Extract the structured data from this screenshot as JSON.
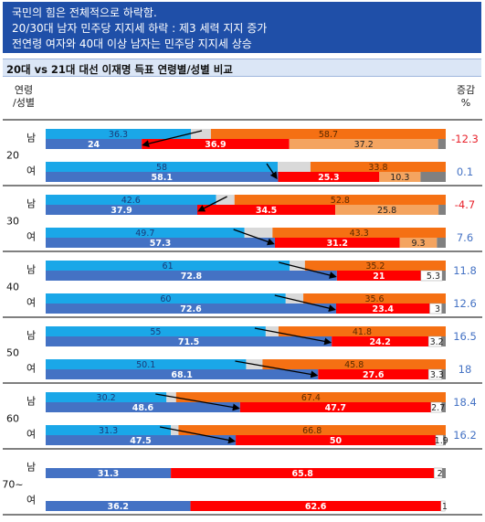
{
  "banner": {
    "line1": "국민의 힘은 전체적으로 하락함.",
    "line2": "20/30대 남자 민주당 지지세 하락 : 제3 세력 지지 증가",
    "line3": "전연령 여자와 40대 이상 남자는 민주당 지지세 상승"
  },
  "subtitle": "20대 vs 21대 대선 이재명 득표 연령별/성별 비교",
  "headers": {
    "age_line1": "연령",
    "age_line2": "/성별",
    "change_line1": "증감",
    "change_line2": "%"
  },
  "colors": {
    "prev_dem": "#1aa7e8",
    "prev_other": "#d9d9d9",
    "prev_ppp": "#f57013",
    "cur_dem": "#4472c4",
    "cur_ppp": "#ff0000",
    "cur_other": "#f4a460",
    "cur_gray": "#808080",
    "neg_text": "#e8212b",
    "pos_text": "#4472c4"
  },
  "chart_data": {
    "type": "bar",
    "orientation": "horizontal",
    "stacked": true,
    "groups": [
      {
        "age": "20",
        "rows": [
          {
            "gender": "남",
            "prev": [
              36.3,
              58.7
            ],
            "cur": [
              24,
              36.9,
              37.2
            ],
            "change": "-12.3"
          },
          {
            "gender": "여",
            "prev": [
              58,
              33.8
            ],
            "cur": [
              58.1,
              25.3,
              10.3
            ],
            "change": "0.1"
          }
        ]
      },
      {
        "age": "30",
        "rows": [
          {
            "gender": "남",
            "prev": [
              42.6,
              52.8
            ],
            "cur": [
              37.9,
              34.5,
              25.8
            ],
            "change": "-4.7"
          },
          {
            "gender": "여",
            "prev": [
              49.7,
              43.3
            ],
            "cur": [
              57.3,
              31.2,
              9.3
            ],
            "change": "7.6"
          }
        ]
      },
      {
        "age": "40",
        "rows": [
          {
            "gender": "남",
            "prev": [
              61,
              35.2
            ],
            "cur": [
              72.8,
              21,
              5.3
            ],
            "change": "11.8"
          },
          {
            "gender": "여",
            "prev": [
              60,
              35.6
            ],
            "cur": [
              72.6,
              23.4,
              3
            ],
            "change": "12.6"
          }
        ]
      },
      {
        "age": "50",
        "rows": [
          {
            "gender": "남",
            "prev": [
              55,
              41.8
            ],
            "cur": [
              71.5,
              24.2,
              3.2
            ],
            "change": "16.5"
          },
          {
            "gender": "여",
            "prev": [
              50.1,
              45.8
            ],
            "cur": [
              68.1,
              27.6,
              3.3
            ],
            "change": "18"
          }
        ]
      },
      {
        "age": "60",
        "rows": [
          {
            "gender": "남",
            "prev": [
              30.2,
              67.4
            ],
            "cur": [
              48.6,
              47.7,
              2.7
            ],
            "change": "18.4"
          },
          {
            "gender": "여",
            "prev": [
              31.3,
              66.8
            ],
            "cur": [
              47.5,
              50,
              1.9
            ],
            "change": "16.2"
          }
        ]
      },
      {
        "age": "70~",
        "rows": [
          {
            "gender": "남",
            "prev": null,
            "cur": [
              31.3,
              65.8,
              2
            ],
            "change": ""
          },
          {
            "gender": "여",
            "prev": null,
            "cur": [
              36.2,
              62.6,
              1
            ],
            "change": ""
          }
        ]
      }
    ]
  }
}
